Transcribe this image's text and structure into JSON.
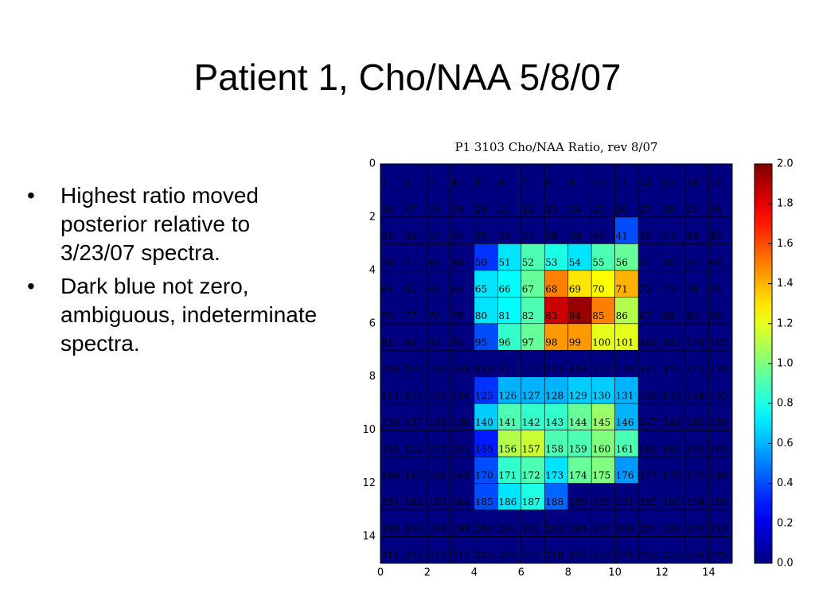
{
  "title": "Patient 1, Cho/NAA 5/8/07",
  "bullets": [
    "Highest ratio moved posterior relative to 3/23/07 spectra.",
    "Dark blue not zero, ambiguous, indeterminate spectra."
  ],
  "chart_data": {
    "type": "heatmap",
    "title": "P1 3103 Cho/NAA Ratio, rev 8/07",
    "colormap": "jet",
    "xlim": [
      0,
      15
    ],
    "ylim": [
      15,
      0
    ],
    "xticks": [
      0,
      2,
      4,
      6,
      8,
      10,
      12,
      14
    ],
    "yticks": [
      0,
      2,
      4,
      6,
      8,
      10,
      12,
      14
    ],
    "clim": [
      0,
      2
    ],
    "cticks": [
      {
        "value": 0,
        "label": "0.0"
      },
      0.2,
      0.4,
      0.6,
      0.8,
      {
        "value": 1,
        "label": "1.0"
      },
      1.2,
      1.4,
      1.6,
      1.8,
      {
        "value": 2,
        "label": "2.0"
      }
    ],
    "values": [
      [
        0,
        0,
        0,
        0,
        0,
        0,
        0,
        0,
        0,
        0,
        0,
        0,
        0,
        0,
        0
      ],
      [
        0,
        0,
        0,
        0,
        0,
        0,
        0,
        0,
        0,
        0,
        0,
        0,
        0,
        0,
        0
      ],
      [
        0,
        0,
        0,
        0,
        0,
        0,
        0,
        0,
        0,
        0,
        0.4,
        0,
        0,
        0,
        0
      ],
      [
        0,
        0,
        0,
        0,
        0.35,
        0.7,
        0.9,
        0.8,
        0.7,
        0.9,
        0.95,
        0,
        0,
        0,
        0
      ],
      [
        0,
        0,
        0,
        0,
        0.7,
        0.75,
        0.95,
        1.5,
        1.3,
        1.25,
        1.4,
        0,
        0,
        0,
        0
      ],
      [
        0,
        0,
        0,
        0,
        0.7,
        0.75,
        0.9,
        1.85,
        1.95,
        1.5,
        1.1,
        0,
        0,
        0,
        0
      ],
      [
        0,
        0,
        0,
        0,
        0.4,
        0.85,
        0.95,
        1.45,
        1.45,
        1.2,
        1.2,
        0,
        0,
        0,
        0
      ],
      [
        0,
        0,
        0,
        0,
        0,
        0,
        0,
        0,
        0,
        0,
        0,
        0,
        0,
        0,
        0
      ],
      [
        0,
        0,
        0,
        0,
        0.35,
        0.6,
        0.6,
        0.6,
        0.65,
        0.65,
        0.6,
        0,
        0,
        0,
        0
      ],
      [
        0,
        0,
        0,
        0,
        0.65,
        0.9,
        0.85,
        0.85,
        0.95,
        1.05,
        0.6,
        0,
        0,
        0,
        0
      ],
      [
        0,
        0,
        0,
        0,
        0.3,
        1.1,
        1.15,
        0.9,
        0.9,
        1.0,
        0.9,
        0,
        0,
        0,
        0
      ],
      [
        0,
        0,
        0,
        0,
        0.4,
        0.85,
        0.9,
        0.7,
        0.95,
        1.0,
        0.55,
        0,
        0,
        0,
        0
      ],
      [
        0,
        0,
        0,
        0,
        0.4,
        0.7,
        0.8,
        0.45,
        0,
        0,
        0,
        0,
        0,
        0,
        0
      ],
      [
        0,
        0,
        0,
        0,
        0,
        0,
        0,
        0,
        0,
        0,
        0,
        0,
        0,
        0,
        0
      ],
      [
        0,
        0,
        0,
        0,
        0,
        0,
        0,
        0,
        0,
        0,
        0,
        0,
        0,
        0,
        0
      ]
    ],
    "cell_labels": [
      [
        1,
        2,
        3,
        4,
        5,
        6,
        7,
        8,
        9,
        10,
        11,
        12,
        13,
        14,
        15
      ],
      [
        16,
        17,
        18,
        19,
        20,
        21,
        22,
        23,
        24,
        25,
        26,
        27,
        28,
        29,
        30
      ],
      [
        31,
        32,
        33,
        34,
        35,
        36,
        37,
        38,
        39,
        40,
        41,
        42,
        43,
        44,
        45
      ],
      [
        46,
        47,
        48,
        49,
        50,
        51,
        52,
        53,
        54,
        55,
        56,
        57,
        58,
        59,
        60
      ],
      [
        61,
        62,
        63,
        64,
        65,
        66,
        67,
        68,
        69,
        70,
        71,
        72,
        73,
        74,
        75
      ],
      [
        76,
        77,
        78,
        79,
        80,
        81,
        82,
        83,
        84,
        85,
        86,
        87,
        88,
        89,
        90
      ],
      [
        91,
        92,
        93,
        94,
        95,
        96,
        97,
        98,
        99,
        100,
        101,
        102,
        103,
        104,
        105
      ],
      [
        106,
        107,
        108,
        109,
        110,
        111,
        112,
        113,
        114,
        115,
        116,
        117,
        118,
        119,
        120
      ],
      [
        121,
        122,
        123,
        124,
        125,
        126,
        127,
        128,
        129,
        130,
        131,
        132,
        133,
        134,
        135
      ],
      [
        136,
        137,
        138,
        139,
        140,
        141,
        142,
        143,
        144,
        145,
        146,
        147,
        148,
        149,
        150
      ],
      [
        151,
        152,
        153,
        154,
        155,
        156,
        157,
        158,
        159,
        160,
        161,
        162,
        163,
        164,
        165
      ],
      [
        166,
        167,
        168,
        169,
        170,
        171,
        172,
        173,
        174,
        175,
        176,
        177,
        178,
        179,
        180
      ],
      [
        181,
        182,
        183,
        184,
        185,
        186,
        187,
        188,
        189,
        190,
        191,
        192,
        193,
        194,
        195
      ],
      [
        196,
        197,
        198,
        199,
        200,
        201,
        202,
        203,
        204,
        205,
        206,
        207,
        208,
        209,
        210
      ],
      [
        211,
        212,
        213,
        214,
        215,
        216,
        217,
        218,
        219,
        220,
        221,
        222,
        223,
        224,
        225
      ]
    ]
  }
}
